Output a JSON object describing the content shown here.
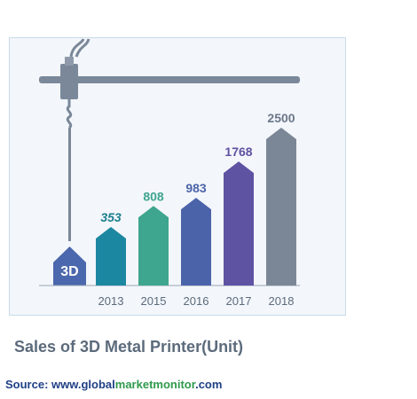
{
  "chart_data": {
    "type": "bar",
    "title": "Sales of 3D Metal Printer(Unit)",
    "categories": [
      "2013",
      "2015",
      "2016",
      "2017",
      "2018"
    ],
    "values": [
      353,
      808,
      983,
      1768,
      2500
    ],
    "bar_colors": [
      "#1c87a0",
      "#3ea58e",
      "#4b63a9",
      "#5e52a2",
      "#7b8796"
    ],
    "label_colors": [
      "#1a7f8c",
      "#3ea58e",
      "#4b63a9",
      "#5e52a2",
      "#6b7889"
    ],
    "ylim": [
      0,
      2500
    ],
    "grid": false,
    "legend": "none",
    "xlabel": "",
    "ylabel": ""
  },
  "printer_badge": "3D",
  "source": {
    "label": "Source: ",
    "site_prefix": "www.global",
    "site_hl1": "market",
    "site_hl2": "monitor",
    "site_suffix": ".com"
  }
}
